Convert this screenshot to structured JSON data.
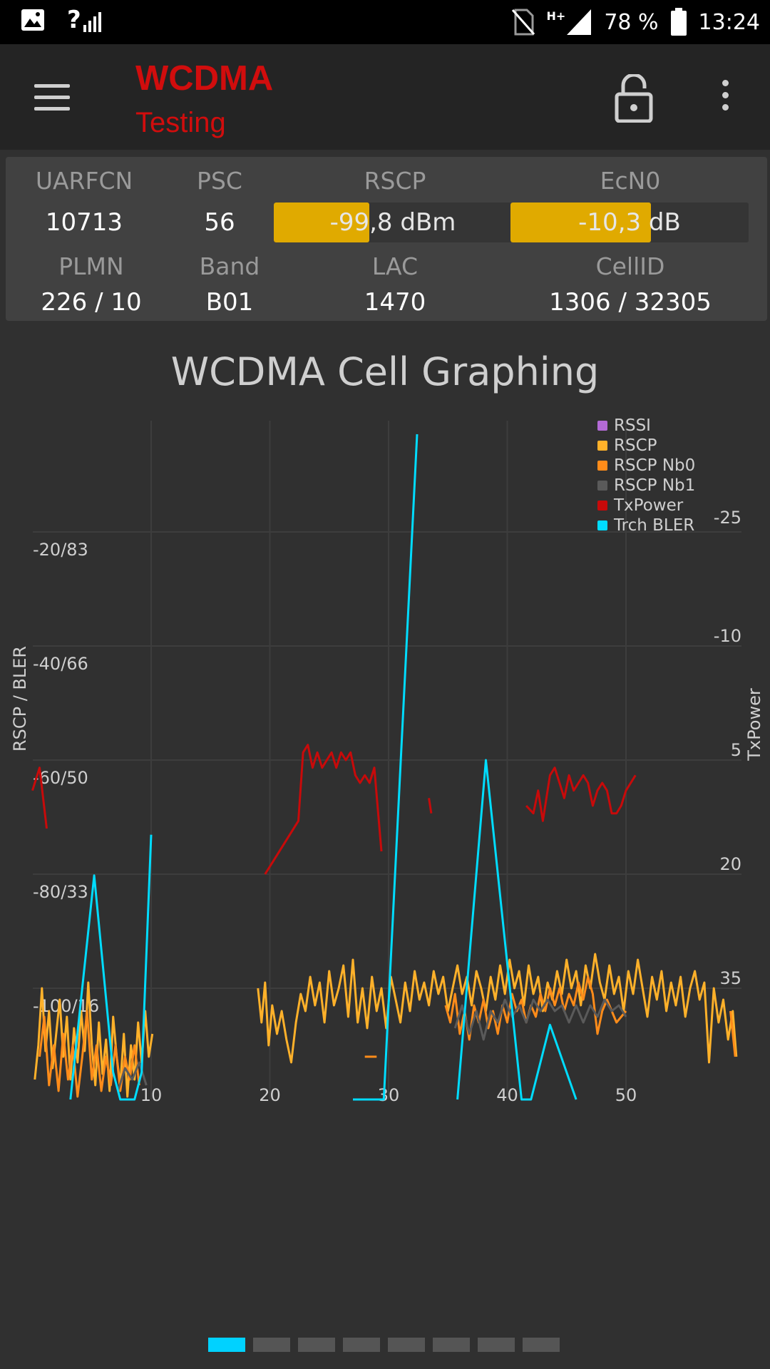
{
  "status_bar": {
    "battery": "78 %",
    "time": "13:24",
    "network_type": "H+",
    "signal_label": "?",
    "icons": [
      "image-icon",
      "signal-icon",
      "no-sim-icon",
      "signal-icon",
      "battery-icon"
    ]
  },
  "app_bar": {
    "title": "WCDMA",
    "subtitle": "Testing",
    "title_color": "#d10d0d"
  },
  "cell_info": {
    "uarfcn_label": "UARFCN",
    "uarfcn": "10713",
    "psc_label": "PSC",
    "psc": "56",
    "rscp_label": "RSCP",
    "rscp": "-99,8 dBm",
    "rscp_level": 0.4,
    "ecn0_label": "EcN0",
    "ecn0": "-10,3 dB",
    "ecn0_level": 0.59,
    "plmn_label": "PLMN",
    "plmn": "226 / 10",
    "band_label": "Band",
    "band": "B01",
    "lac_label": "LAC",
    "lac": "1470",
    "cellid_label": "CellID",
    "cellid": "1306 / 32305",
    "bar_color": "#e0aa00"
  },
  "chart_title": "WCDMA Cell Graphing",
  "chart_data": {
    "type": "line",
    "title": "WCDMA Cell Graphing",
    "ylabel_left": "RSCP / BLER",
    "ylabel_right": "TxPower",
    "x_ticks": [
      "10",
      "20",
      "30",
      "40",
      "50"
    ],
    "y_left_ticks": [
      "-20/83",
      "-40/66",
      "-60/50",
      "-80/33",
      "-100/16"
    ],
    "y_right_ticks": [
      "-25",
      "-10",
      "5",
      "20",
      "35"
    ],
    "xlim": [
      0,
      60
    ],
    "ylim_left": [
      -120,
      0
    ],
    "ylim_right": [
      -40,
      50
    ],
    "legend_position": "top-right",
    "grid": true,
    "series": [
      {
        "name": "RSSI",
        "color": "#b36ad6",
        "points": []
      },
      {
        "name": "RSCP",
        "color": "#ffb12a",
        "points": [
          [
            0.2,
            -116
          ],
          [
            0.5,
            -110
          ],
          [
            0.8,
            -100
          ],
          [
            1.1,
            -111
          ],
          [
            1.4,
            -104
          ],
          [
            1.7,
            -114
          ],
          [
            2.0,
            -108
          ],
          [
            2.3,
            -102
          ],
          [
            2.6,
            -112
          ],
          [
            2.9,
            -105
          ],
          [
            3.2,
            -116
          ],
          [
            3.5,
            -107
          ],
          [
            3.8,
            -113
          ],
          [
            4.1,
            -104
          ],
          [
            4.4,
            -111
          ],
          [
            4.7,
            -99
          ],
          [
            5.0,
            -110
          ],
          [
            5.3,
            -117
          ],
          [
            5.6,
            -106
          ],
          [
            5.9,
            -115
          ],
          [
            6.2,
            -109
          ],
          [
            6.5,
            -118
          ],
          [
            6.8,
            -105
          ],
          [
            7.1,
            -112
          ],
          [
            7.4,
            -117
          ],
          [
            7.7,
            -108
          ],
          [
            8.0,
            -119
          ],
          [
            8.3,
            -110
          ],
          [
            8.6,
            -116
          ],
          [
            8.9,
            -106
          ],
          [
            9.2,
            -113
          ],
          [
            9.5,
            -104
          ],
          [
            9.8,
            -112
          ],
          [
            10.1,
            -108
          ],
          [
            19.0,
            -100
          ],
          [
            19.3,
            -106
          ],
          [
            19.6,
            -99
          ],
          [
            19.9,
            -110
          ],
          [
            20.2,
            -103
          ],
          [
            20.6,
            -108
          ],
          [
            21.0,
            -104
          ],
          [
            21.4,
            -109
          ],
          [
            21.8,
            -113
          ],
          [
            22.2,
            -106
          ],
          [
            22.6,
            -101
          ],
          [
            23.0,
            -104
          ],
          [
            23.4,
            -98
          ],
          [
            23.8,
            -103
          ],
          [
            24.2,
            -99
          ],
          [
            24.6,
            -106
          ],
          [
            25.0,
            -97
          ],
          [
            25.4,
            -103
          ],
          [
            25.8,
            -100
          ],
          [
            26.2,
            -96
          ],
          [
            26.6,
            -105
          ],
          [
            27.0,
            -95
          ],
          [
            27.4,
            -106
          ],
          [
            27.8,
            -100
          ],
          [
            28.2,
            -107
          ],
          [
            28.6,
            -98
          ],
          [
            29.0,
            -104
          ],
          [
            29.4,
            -100
          ],
          [
            29.8,
            -107
          ],
          [
            30.2,
            -98
          ],
          [
            30.6,
            -102
          ],
          [
            31.0,
            -106
          ],
          [
            31.4,
            -99
          ],
          [
            31.8,
            -104
          ],
          [
            32.2,
            -97
          ],
          [
            32.6,
            -102
          ],
          [
            33.0,
            -99
          ],
          [
            33.4,
            -103
          ],
          [
            33.8,
            -97
          ],
          [
            34.2,
            -101
          ],
          [
            34.6,
            -98
          ],
          [
            35.0,
            -104
          ],
          [
            35.4,
            -100
          ],
          [
            35.8,
            -96
          ],
          [
            36.2,
            -101
          ],
          [
            36.6,
            -98
          ],
          [
            37.0,
            -103
          ],
          [
            37.4,
            -97
          ],
          [
            37.8,
            -100
          ],
          [
            38.2,
            -104
          ],
          [
            38.6,
            -98
          ],
          [
            39.0,
            -102
          ],
          [
            39.4,
            -96
          ],
          [
            39.8,
            -101
          ],
          [
            40.2,
            -95
          ],
          [
            40.6,
            -100
          ],
          [
            41.0,
            -97
          ],
          [
            41.4,
            -103
          ],
          [
            41.8,
            -96
          ],
          [
            42.2,
            -101
          ],
          [
            42.6,
            -98
          ],
          [
            43.0,
            -104
          ],
          [
            43.4,
            -99
          ],
          [
            43.8,
            -102
          ],
          [
            44.2,
            -97
          ],
          [
            44.6,
            -101
          ],
          [
            45.0,
            -95
          ],
          [
            45.4,
            -100
          ],
          [
            45.8,
            -97
          ],
          [
            46.2,
            -103
          ],
          [
            46.6,
            -96
          ],
          [
            47.0,
            -100
          ],
          [
            47.4,
            -94
          ],
          [
            47.8,
            -99
          ],
          [
            48.2,
            -102
          ],
          [
            48.6,
            -96
          ],
          [
            49.0,
            -101
          ],
          [
            49.4,
            -98
          ],
          [
            49.8,
            -104
          ],
          [
            50.2,
            -97
          ],
          [
            50.6,
            -101
          ],
          [
            51.0,
            -95
          ],
          [
            51.4,
            -100
          ],
          [
            51.8,
            -105
          ],
          [
            52.2,
            -98
          ],
          [
            52.6,
            -102
          ],
          [
            53.0,
            -97
          ],
          [
            53.4,
            -104
          ],
          [
            53.8,
            -99
          ],
          [
            54.2,
            -103
          ],
          [
            54.6,
            -98
          ],
          [
            55.0,
            -105
          ],
          [
            55.4,
            -100
          ],
          [
            55.8,
            -97
          ],
          [
            56.2,
            -102
          ],
          [
            56.6,
            -99
          ],
          [
            57.0,
            -113
          ],
          [
            57.4,
            -100
          ],
          [
            57.8,
            -106
          ],
          [
            58.2,
            -102
          ],
          [
            58.6,
            -109
          ],
          [
            59.0,
            -104
          ],
          [
            59.3,
            -112
          ]
        ]
      },
      {
        "name": "RSCP Nb0",
        "color": "#ff8c1a",
        "points": [
          [
            0.6,
            -112
          ],
          [
            1.0,
            -105
          ],
          [
            1.4,
            -117
          ],
          [
            1.8,
            -110
          ],
          [
            2.2,
            -118
          ],
          [
            2.6,
            -108
          ],
          [
            3.0,
            -116
          ],
          [
            3.4,
            -110
          ],
          [
            3.8,
            -119
          ],
          [
            4.2,
            -112
          ],
          [
            4.6,
            -104
          ],
          [
            5.0,
            -116
          ],
          [
            5.4,
            -110
          ],
          [
            5.8,
            -118
          ],
          [
            6.2,
            -112
          ],
          [
            6.6,
            -117
          ],
          [
            7.0,
            -110
          ],
          [
            7.4,
            -118
          ],
          [
            7.8,
            -112
          ],
          [
            8.2,
            -116
          ],
          [
            8.6,
            -110
          ],
          [
            9.0,
            -117
          ],
          [
            28.0,
            -112
          ],
          [
            28.6,
            -112
          ],
          [
            29.0,
            -112
          ],
          [
            34.8,
            -103
          ],
          [
            35.2,
            -106
          ],
          [
            35.6,
            -101
          ],
          [
            36.0,
            -108
          ],
          [
            36.4,
            -104
          ],
          [
            36.8,
            -109
          ],
          [
            37.2,
            -103
          ],
          [
            37.6,
            -106
          ],
          [
            38.0,
            -102
          ],
          [
            38.4,
            -107
          ],
          [
            38.8,
            -104
          ],
          [
            39.2,
            -108
          ],
          [
            39.6,
            -103
          ],
          [
            40.0,
            -106
          ],
          [
            40.4,
            -101
          ],
          [
            40.8,
            -104
          ],
          [
            41.2,
            -102
          ],
          [
            41.6,
            -106
          ],
          [
            42.0,
            -103
          ],
          [
            42.4,
            -105
          ],
          [
            42.8,
            -101
          ],
          [
            43.2,
            -104
          ],
          [
            43.6,
            -100
          ],
          [
            44.0,
            -103
          ],
          [
            44.4,
            -100
          ],
          [
            44.8,
            -104
          ],
          [
            45.2,
            -101
          ],
          [
            45.6,
            -103
          ],
          [
            46.0,
            -99
          ],
          [
            46.4,
            -102
          ],
          [
            46.8,
            -98
          ],
          [
            47.2,
            -101
          ],
          [
            47.6,
            -108
          ],
          [
            48.0,
            -104
          ],
          [
            48.4,
            -102
          ],
          [
            49.2,
            -106
          ],
          [
            50.0,
            -104
          ],
          [
            58.8,
            -104
          ],
          [
            59.2,
            -112
          ]
        ]
      },
      {
        "name": "RSCP Nb1",
        "color": "#5a5a5a",
        "points": [
          [
            7.2,
            -118
          ],
          [
            7.8,
            -114
          ],
          [
            8.4,
            -116
          ],
          [
            9.0,
            -113
          ],
          [
            9.6,
            -117
          ],
          [
            35.6,
            -107
          ],
          [
            36.2,
            -103
          ],
          [
            36.8,
            -108
          ],
          [
            37.4,
            -104
          ],
          [
            38.0,
            -109
          ],
          [
            38.6,
            -104
          ],
          [
            39.2,
            -106
          ],
          [
            39.8,
            -102
          ],
          [
            40.4,
            -105
          ],
          [
            41.0,
            -103
          ],
          [
            41.6,
            -106
          ],
          [
            42.2,
            -102
          ],
          [
            42.8,
            -104
          ],
          [
            43.4,
            -102
          ],
          [
            44.0,
            -104
          ],
          [
            44.6,
            -103
          ],
          [
            45.2,
            -106
          ],
          [
            45.8,
            -103
          ],
          [
            46.4,
            -106
          ],
          [
            47.0,
            -103
          ],
          [
            47.6,
            -105
          ],
          [
            48.2,
            -102
          ],
          [
            48.8,
            -104
          ],
          [
            49.4,
            -103
          ],
          [
            50.0,
            -105
          ]
        ]
      },
      {
        "name": "TxPower",
        "color": "#c80a0a",
        "points": [
          [
            0.0,
            9
          ],
          [
            0.6,
            6
          ],
          [
            1.2,
            14
          ],
          [
            19.6,
            20
          ],
          [
            22.4,
            13
          ],
          [
            22.8,
            4
          ],
          [
            23.2,
            3
          ],
          [
            23.6,
            6
          ],
          [
            24.0,
            4
          ],
          [
            24.4,
            6
          ],
          [
            24.8,
            5
          ],
          [
            25.2,
            4
          ],
          [
            25.6,
            6
          ],
          [
            26.0,
            4
          ],
          [
            26.4,
            5
          ],
          [
            26.8,
            4
          ],
          [
            27.2,
            7
          ],
          [
            27.6,
            8
          ],
          [
            28.0,
            7
          ],
          [
            28.4,
            8
          ],
          [
            28.8,
            6
          ],
          [
            29.4,
            17
          ],
          [
            33.4,
            10
          ],
          [
            33.6,
            12
          ],
          [
            38.4,
            9
          ],
          [
            41.6,
            11
          ],
          [
            42.2,
            12
          ],
          [
            42.6,
            9
          ],
          [
            43.0,
            13
          ],
          [
            43.6,
            7
          ],
          [
            44.0,
            6
          ],
          [
            44.4,
            8
          ],
          [
            44.8,
            10
          ],
          [
            45.2,
            7
          ],
          [
            45.6,
            9
          ],
          [
            46.0,
            8
          ],
          [
            46.4,
            7
          ],
          [
            46.8,
            8
          ],
          [
            47.2,
            11
          ],
          [
            47.6,
            9
          ],
          [
            48.0,
            8
          ],
          [
            48.4,
            9
          ],
          [
            48.8,
            12
          ],
          [
            49.2,
            12
          ],
          [
            49.6,
            11
          ],
          [
            50.0,
            9
          ],
          [
            50.4,
            8
          ],
          [
            50.8,
            7
          ]
        ]
      },
      {
        "name": "Trch BLER",
        "color": "#00dcff",
        "points": [
          [
            3.2,
            0
          ],
          [
            5.2,
            33
          ],
          [
            6.8,
            4
          ],
          [
            7.4,
            0
          ],
          [
            8.6,
            0
          ],
          [
            9.2,
            4
          ],
          [
            10.0,
            39
          ],
          [
            23.0,
            0
          ],
          [
            27.0,
            0
          ],
          [
            29.6,
            0
          ],
          [
            32.4,
            98
          ],
          [
            35.8,
            0
          ],
          [
            38.2,
            50
          ],
          [
            41.2,
            0
          ],
          [
            42.0,
            0
          ],
          [
            43.6,
            11
          ],
          [
            45.8,
            0
          ],
          [
            51.8,
            0
          ],
          [
            57.8,
            0
          ]
        ]
      }
    ]
  },
  "pager": {
    "count": 8,
    "active": 0
  }
}
